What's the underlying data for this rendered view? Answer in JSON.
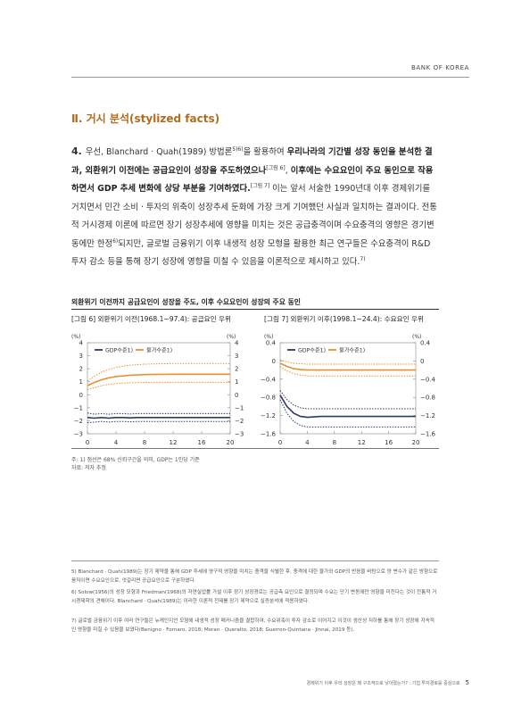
{
  "header": {
    "brand": "BANK OF KOREA"
  },
  "section_title": "Ⅱ. 거시 분석(stylized facts)",
  "paragraph": {
    "number": "4.",
    "t1": "우선, Blanchard · Quah(1989) 방법론",
    "sup1": "5)6)",
    "t2": "을 활용하여 ",
    "b1": "우리나라의 기간별 성장 동인을 분석한 결과, 외환위기 이전에는 공급요인이 성장을 주도하였으나",
    "sup2": "[그림 6]",
    "t3": ", ",
    "b2": "이후에는 수요요인이 주요 동인으로 작용하면서 GDP 추세 변화에 상당 부분을 기여하였다.",
    "sup3": "[그림 7]",
    "t4": " 이는 앞서 서술한 1990년대 이후 경제위기를 거치면서 민간 소비 · 투자의 위축이 성장추세 둔화에 가장 크게 기여했던 사실과 일치하는 결과이다. 전통적 거시경제 이론에 따르면 장기 성장추세에 영향을 미치는 것은 공급충격이며 수요충격의 영향은 경기변동에만 한정",
    "sup4": "6)",
    "t5": "되지만, 글로벌 금융위기 이후 내생적 성장 모형을 활용한 최근 연구들은 수요충격이 R&D 투자 감소 등을 통해 장기 성장에 영향을 미칠 수 있음을 이론적으로 제시하고 있다.",
    "sup5": "7)"
  },
  "figure": {
    "title": "외환위기 이전까지 공급요인이 성장을 주도, 이후 수요요인이 성장의 주요 동인",
    "note1": "주: 1) 점선은 68% 신뢰구간을 의미, GDP는 1인당 기준",
    "note2": "자료: 저자 추정"
  },
  "colors": {
    "gdp": "#2b3a67",
    "price": "#e8912e",
    "accent": "#b36b1c"
  },
  "chart_data": [
    {
      "type": "line",
      "title": "[그림 6] 외환위기 이전(1968.1~97.4): 공급요인 우위",
      "unit_left": "(%)",
      "unit_right": "(%)",
      "x": [
        0,
        1,
        2,
        3,
        4,
        5,
        6,
        7,
        8,
        9,
        10,
        11,
        12,
        13,
        14,
        15,
        16,
        17,
        18,
        19,
        20
      ],
      "xticks": [
        "0",
        "4",
        "8",
        "12",
        "16",
        "20"
      ],
      "yticks": [
        "4",
        "3",
        "2",
        "1",
        "0",
        "−1",
        "−2",
        "−3"
      ],
      "ylim": [
        -3,
        4
      ],
      "series": [
        {
          "name": "GDP수준1)",
          "color": "#2b3a67",
          "values": [
            -1.75,
            -1.8,
            -1.75,
            -1.8,
            -1.75,
            -1.75,
            -1.78,
            -1.75,
            -1.75,
            -1.75,
            -1.75,
            -1.75,
            -1.75,
            -1.75,
            -1.75,
            -1.75,
            -1.75,
            -1.75,
            -1.75,
            -1.75,
            -1.75
          ],
          "upper": [
            -1.4,
            -1.5,
            -1.45,
            -1.5,
            -1.45,
            -1.45,
            -1.48,
            -1.45,
            -1.45,
            -1.45,
            -1.45,
            -1.45,
            -1.45,
            -1.45,
            -1.45,
            -1.45,
            -1.45,
            -1.45,
            -1.45,
            -1.45,
            -1.45
          ],
          "lower": [
            -2.15,
            -2.1,
            -2.05,
            -2.1,
            -2.05,
            -2.05,
            -2.08,
            -2.05,
            -2.05,
            -2.05,
            -2.05,
            -2.05,
            -2.05,
            -2.05,
            -2.05,
            -2.05,
            -2.05,
            -2.05,
            -2.05,
            -2.05,
            -2.05
          ]
        },
        {
          "name": "물가수준1)",
          "color": "#e8912e",
          "values": [
            0.7,
            0.95,
            1.15,
            1.3,
            1.4,
            1.45,
            1.5,
            1.52,
            1.55,
            1.56,
            1.57,
            1.57,
            1.58,
            1.58,
            1.58,
            1.58,
            1.58,
            1.58,
            1.58,
            1.58,
            1.58
          ],
          "upper": [
            1.05,
            1.45,
            1.75,
            1.95,
            2.1,
            2.2,
            2.27,
            2.32,
            2.35,
            2.37,
            2.38,
            2.39,
            2.4,
            2.4,
            2.4,
            2.4,
            2.4,
            2.4,
            2.4,
            2.4,
            2.4
          ],
          "lower": [
            0.4,
            0.55,
            0.7,
            0.8,
            0.85,
            0.9,
            0.92,
            0.93,
            0.94,
            0.95,
            0.95,
            0.95,
            0.95,
            0.95,
            0.95,
            0.95,
            0.95,
            0.95,
            0.95,
            0.95,
            0.95
          ]
        }
      ]
    },
    {
      "type": "line",
      "title": "[그림 7] 외환위기 이후(1998.1~24.4): 수요요인 우위",
      "unit_left": "(%)",
      "unit_right": "(%)",
      "x": [
        0,
        1,
        2,
        3,
        4,
        5,
        6,
        7,
        8,
        9,
        10,
        11,
        12,
        13,
        14,
        15,
        16,
        17,
        18,
        19,
        20
      ],
      "xticks": [
        "0",
        "4",
        "8",
        "12",
        "16",
        "20"
      ],
      "yticks": [
        "0.4",
        "0",
        "−0.4",
        "−0.8",
        "−1.2",
        "−1.6"
      ],
      "ylim": [
        -1.6,
        0.4
      ],
      "series": [
        {
          "name": "GDP수준1)",
          "color": "#2b3a67",
          "values": [
            -0.75,
            -1.0,
            -1.15,
            -1.22,
            -1.24,
            -1.23,
            -1.22,
            -1.22,
            -1.22,
            -1.22,
            -1.22,
            -1.22,
            -1.22,
            -1.22,
            -1.22,
            -1.22,
            -1.22,
            -1.22,
            -1.22,
            -1.22,
            -1.22
          ],
          "upper": [
            -0.65,
            -0.85,
            -0.97,
            -1.03,
            -1.05,
            -1.05,
            -1.05,
            -1.05,
            -1.05,
            -1.05,
            -1.05,
            -1.05,
            -1.05,
            -1.05,
            -1.05,
            -1.05,
            -1.05,
            -1.05,
            -1.05,
            -1.05,
            -1.05
          ],
          "lower": [
            -0.85,
            -1.15,
            -1.33,
            -1.42,
            -1.45,
            -1.45,
            -1.45,
            -1.45,
            -1.45,
            -1.45,
            -1.45,
            -1.45,
            -1.45,
            -1.45,
            -1.45,
            -1.45,
            -1.45,
            -1.45,
            -1.45,
            -1.45,
            -1.45
          ]
        },
        {
          "name": "물가수준1)",
          "color": "#e8912e",
          "values": [
            -0.05,
            -0.12,
            -0.17,
            -0.19,
            -0.2,
            -0.2,
            -0.2,
            -0.2,
            -0.2,
            -0.2,
            -0.2,
            -0.2,
            -0.2,
            -0.2,
            -0.2,
            -0.2,
            -0.2,
            -0.2,
            -0.2,
            -0.2,
            -0.2
          ],
          "upper": [
            0.02,
            -0.02,
            -0.05,
            -0.06,
            -0.07,
            -0.07,
            -0.07,
            -0.07,
            -0.07,
            -0.07,
            -0.07,
            -0.07,
            -0.07,
            -0.07,
            -0.07,
            -0.07,
            -0.07,
            -0.07,
            -0.07,
            -0.07,
            -0.07
          ],
          "lower": [
            -0.12,
            -0.22,
            -0.28,
            -0.31,
            -0.33,
            -0.33,
            -0.33,
            -0.33,
            -0.33,
            -0.33,
            -0.33,
            -0.33,
            -0.33,
            -0.33,
            -0.33,
            -0.33,
            -0.33,
            -0.33,
            -0.33,
            -0.33,
            -0.33
          ]
        }
      ]
    }
  ],
  "footnotes": [
    "5) Blanchard · Quah(1989)는 장기 제약을 통해 GDP 추세에 영구적 영향을 미치는 충격을 식별한 후, 충격에 대한 물가와 GDP의 반응을 바탕으로 양 변수가 같은 방향으로 움직이면 수요요인으로, 엇갈리면 공급요인으로 구분하였다.",
    "6) Solow(1956)의 성장 모형과 Friedman(1968)의 자연실업률 가설 이후 장기 성장경로는 공급측 요인으로 결정되며 수요는 단기 변동에만 영향을 미친다는 것이 전통적 거시경제학의 견해이다. Blanchard · Quah(1989)는 이러한 이론적 전제를 장기 제약으로 실증분석에 적용하였다.",
    "7) 글로벌 금융위기 이후 여러 연구들은 뉴케인지언 모형에 내생적 성장 메커니즘을 결합하여, 수요위축이 투자 감소로 이어지고 이것이 생산성 저하를 통해 장기 성장에 지속적인 영향을 미칠 수 있음을 보였다(Benigno · Fornaro, 2018; Moran · Queralto, 2018; Guerron-Quintana · Jinnai, 2019 등)."
  ],
  "footer": {
    "text": "경제위기 이후 우리 성장은 왜 구조적으로 낮아졌는가? : 기업 투자경로를 중심으로",
    "page": "5"
  }
}
